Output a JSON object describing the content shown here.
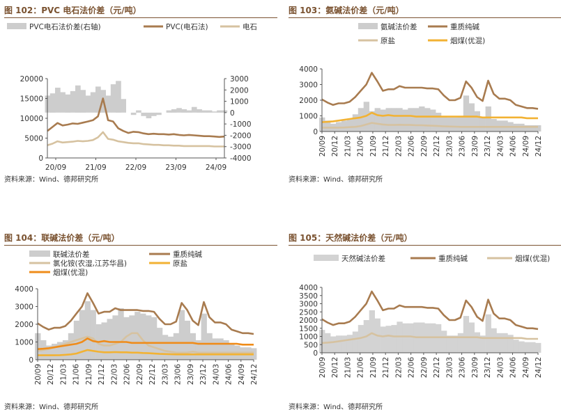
{
  "charts": [
    {
      "id": "c102",
      "title": "图 102：PVC 电石法价差（元/吨）",
      "source": "资料来源：Wind、德邦研究所",
      "chart_data": {
        "type": "area+line",
        "title": "PVC 电石法价差（元/吨）",
        "legend": [
          "PVC电石法价差(右轴)",
          "PVC(电石法)",
          "电石"
        ],
        "x_ticks": [
          "20/09",
          "21/09",
          "22/09",
          "23/09",
          "24/09"
        ],
        "y_left": {
          "ticks": [
            "0",
            "5000",
            "10000",
            "15000",
            "20000"
          ],
          "min": 0,
          "max": 20000
        },
        "y_right": {
          "ticks": [
            "-4000",
            "-3000",
            "-2000",
            "-1000",
            "0",
            "1000",
            "2000",
            "3000"
          ],
          "min": -4000,
          "max": 3000
        },
        "series": [
          {
            "name": "PVC电石法价差(右轴)",
            "axis": "right",
            "kind": "area",
            "color": "#cdcdcd",
            "values": [
              1500,
              1700,
              2200,
              1800,
              1600,
              1900,
              2400,
              2000,
              1500,
              1800,
              2300,
              2000,
              1500,
              2500,
              2800,
              1200,
              0,
              -200,
              200,
              -300,
              -500,
              -300,
              -200,
              0,
              200,
              300,
              400,
              300,
              200,
              500,
              300,
              200,
              200,
              100,
              200,
              200
            ]
          },
          {
            "name": "PVC(电石法)",
            "axis": "left",
            "kind": "line",
            "color": "#a87b4f",
            "values": [
              6800,
              7800,
              8800,
              8200,
              8400,
              8700,
              8600,
              8900,
              9200,
              9500,
              10500,
              15000,
              9500,
              9200,
              7500,
              6800,
              6300,
              6600,
              6500,
              6200,
              6000,
              6100,
              6000,
              6000,
              5900,
              6000,
              5800,
              5700,
              5800,
              5700,
              5600,
              5500,
              5500,
              5400,
              5300,
              5400
            ]
          },
          {
            "name": "电石",
            "axis": "left",
            "kind": "line",
            "color": "#d6c2a0",
            "values": [
              3200,
              3600,
              4200,
              3900,
              4000,
              4100,
              4300,
              4200,
              4300,
              4500,
              5200,
              6500,
              4800,
              4600,
              4200,
              4000,
              3800,
              3700,
              3700,
              3500,
              3400,
              3300,
              3300,
              3200,
              3200,
              3100,
              3100,
              3000,
              3000,
              3000,
              3000,
              3000,
              3000,
              2900,
              2900,
              2900
            ]
          }
        ]
      }
    },
    {
      "id": "c103",
      "title": "图 103：氨碱法价差（元/吨）",
      "source": "资料来源：Wind、德邦研究所",
      "chart_data": {
        "type": "area+line",
        "title": "氨碱法价差（元/吨）",
        "legend": [
          "氨碱法价差",
          "重质纯碱",
          "原盐",
          "烟煤(优混)"
        ],
        "x_ticks": [
          "20/09",
          "20/12",
          "21/03",
          "21/06",
          "21/09",
          "21/12",
          "22/03",
          "22/06",
          "22/09",
          "22/12",
          "23/03",
          "23/06",
          "23/09",
          "23/12",
          "24/03",
          "24/06",
          "24/09",
          "24/12"
        ],
        "y_left": {
          "ticks": [
            "0",
            "1000",
            "2000",
            "3000",
            "4000"
          ],
          "min": 0,
          "max": 4000
        },
        "series": [
          {
            "name": "氨碱法价差",
            "kind": "area",
            "color": "#cdcdcd",
            "values": [
              900,
              700,
              500,
              600,
              700,
              800,
              1100,
              1500,
              1900,
              1300,
              1500,
              1400,
              1500,
              1500,
              1500,
              1400,
              1500,
              1500,
              1600,
              1500,
              1400,
              1200,
              1000,
              900,
              900,
              1000,
              2300,
              1800,
              1300,
              900,
              1600,
              800,
              700,
              700,
              600,
              500,
              500,
              400,
              400,
              400
            ]
          },
          {
            "name": "重质纯碱",
            "kind": "line",
            "color": "#a87b4f",
            "values": [
              2050,
              1850,
              1700,
              1800,
              1800,
              1900,
              2200,
              2600,
              3000,
              3750,
              3200,
              2600,
              2700,
              2700,
              2900,
              2800,
              2800,
              2800,
              2800,
              2750,
              2750,
              2700,
              2300,
              2000,
              2000,
              2150,
              3200,
              2800,
              2200,
              1950,
              3250,
              2400,
              2100,
              2100,
              2000,
              1700,
              1600,
              1500,
              1500,
              1450
            ]
          },
          {
            "name": "原盐",
            "kind": "line",
            "color": "#d6c2a0",
            "values": [
              250,
              250,
              250,
              250,
              260,
              280,
              300,
              350,
              450,
              550,
              500,
              450,
              420,
              420,
              430,
              420,
              420,
              400,
              400,
              380,
              370,
              350,
              330,
              320,
              310,
              300,
              300,
              300,
              300,
              300,
              300,
              300,
              300,
              300,
              300,
              300,
              300,
              300,
              300,
              300
            ]
          },
          {
            "name": "烟煤(优混)",
            "kind": "line",
            "color": "#f2b233",
            "values": [
              600,
              620,
              650,
              700,
              750,
              800,
              850,
              900,
              1000,
              1200,
              1050,
              1000,
              1050,
              1000,
              1000,
              1000,
              1000,
              950,
              950,
              950,
              950,
              950,
              950,
              950,
              950,
              950,
              950,
              950,
              950,
              900,
              900,
              900,
              900,
              900,
              900,
              900,
              900,
              850,
              850,
              850
            ]
          }
        ]
      }
    },
    {
      "id": "c104",
      "title": "图 104：联碱法价差（元/吨）",
      "source": "资料来源：Wind、德邦研究所",
      "chart_data": {
        "type": "area+line",
        "title": "联碱法价差（元/吨）",
        "legend": [
          "联碱法价差",
          "重质纯碱",
          "氯化铵(农湿,江苏华昌)",
          "原盐",
          "烟煤(优混)"
        ],
        "x_ticks": [
          "20/09",
          "20/12",
          "21/03",
          "21/06",
          "21/09",
          "21/12",
          "22/03",
          "22/06",
          "22/09",
          "22/12",
          "23/03",
          "23/06",
          "23/09",
          "23/12",
          "24/03",
          "24/06",
          "24/09",
          "24/12"
        ],
        "y_left": {
          "ticks": [
            "0",
            "1000",
            "2000",
            "3000",
            "4000"
          ],
          "min": 0,
          "max": 4000
        },
        "series": [
          {
            "name": "联碱法价差",
            "kind": "area",
            "color": "#cdcdcd",
            "values": [
              1500,
              1100,
              800,
              900,
              1000,
              1100,
              1500,
              2200,
              2800,
              3300,
              2800,
              2000,
              2100,
              2300,
              2500,
              2900,
              2400,
              2500,
              2700,
              2600,
              2500,
              2400,
              1800,
              1400,
              1300,
              1500,
              2800,
              2200,
              1500,
              1100,
              2600,
              1500,
              1200,
              1200,
              1100,
              900,
              800,
              700,
              700,
              650
            ]
          },
          {
            "name": "重质纯碱",
            "kind": "line",
            "color": "#a87b4f",
            "values": [
              2050,
              1850,
              1700,
              1800,
              1800,
              1900,
              2200,
              2600,
              3000,
              3750,
              3200,
              2600,
              2700,
              2700,
              2900,
              2800,
              2800,
              2800,
              2800,
              2750,
              2750,
              2700,
              2300,
              2000,
              2000,
              2150,
              3200,
              2800,
              2200,
              1950,
              3250,
              2400,
              2100,
              2100,
              2000,
              1700,
              1600,
              1500,
              1500,
              1450
            ]
          },
          {
            "name": "氯化铵(农湿,江苏华昌)",
            "kind": "line",
            "color": "#d6c2a0",
            "values": [
              500,
              550,
              600,
              700,
              800,
              900,
              1000,
              1100,
              1200,
              1300,
              1200,
              900,
              800,
              800,
              900,
              1000,
              1300,
              1500,
              1500,
              1100,
              800,
              700,
              600,
              500,
              450,
              400,
              400,
              400,
              450,
              400,
              400,
              400,
              400,
              400,
              400,
              400,
              400,
              400,
              400,
              400
            ]
          },
          {
            "name": "原盐",
            "kind": "line",
            "color": "#f2b233",
            "values": [
              250,
              250,
              250,
              250,
              260,
              280,
              300,
              350,
              450,
              550,
              500,
              450,
              420,
              420,
              430,
              420,
              420,
              400,
              400,
              380,
              370,
              350,
              330,
              320,
              310,
              300,
              300,
              300,
              300,
              300,
              300,
              300,
              300,
              300,
              300,
              300,
              300,
              300,
              300,
              300
            ]
          },
          {
            "name": "烟煤(优混)",
            "kind": "line",
            "color": "#ef8c1a",
            "values": [
              600,
              620,
              650,
              700,
              750,
              800,
              850,
              900,
              1000,
              1200,
              1050,
              1000,
              1050,
              1000,
              1000,
              1000,
              1000,
              950,
              950,
              950,
              950,
              950,
              950,
              950,
              950,
              950,
              950,
              950,
              950,
              900,
              900,
              900,
              900,
              900,
              900,
              900,
              900,
              850,
              850,
              850
            ]
          }
        ]
      }
    },
    {
      "id": "c105",
      "title": "图 105：天然碱法价差（元/吨）",
      "source": "资料来源：Wind、德邦研究所",
      "chart_data": {
        "type": "area+line",
        "title": "天然碱法价差（元/吨）",
        "legend": [
          "天然碱法价差",
          "重质纯碱",
          "烟煤(优混)"
        ],
        "x_ticks": [
          "20/09",
          "20/12",
          "21/03",
          "21/06",
          "21/09",
          "21/12",
          "22/03",
          "22/06",
          "22/09",
          "22/12",
          "23/03",
          "23/06",
          "23/09",
          "23/12",
          "24/03",
          "24/06",
          "24/09",
          "24/12"
        ],
        "y_left": {
          "ticks": [
            "0",
            "500",
            "1000",
            "1500",
            "2000",
            "2500",
            "3000",
            "3500",
            "4000"
          ],
          "min": 0,
          "max": 4000
        },
        "series": [
          {
            "name": "天然碱法价差",
            "kind": "area",
            "color": "#d3d3d3",
            "values": [
              1400,
              1200,
              1000,
              1050,
              1050,
              1100,
              1300,
              1700,
              2000,
              2600,
              2100,
              1600,
              1650,
              1700,
              1900,
              1800,
              1800,
              1850,
              1850,
              1800,
              1800,
              1750,
              1350,
              1050,
              1050,
              1200,
              2250,
              1850,
              1250,
              1050,
              2350,
              1500,
              1200,
              1200,
              1100,
              800,
              700,
              650,
              650,
              600
            ]
          },
          {
            "name": "重质纯碱",
            "kind": "line",
            "color": "#a87b4f",
            "values": [
              2050,
              1850,
              1700,
              1800,
              1800,
              1900,
              2200,
              2600,
              3000,
              3750,
              3200,
              2600,
              2700,
              2700,
              2900,
              2800,
              2800,
              2800,
              2800,
              2750,
              2750,
              2700,
              2300,
              2000,
              2000,
              2150,
              3200,
              2800,
              2200,
              1950,
              3250,
              2400,
              2100,
              2100,
              2000,
              1700,
              1600,
              1500,
              1500,
              1450
            ]
          },
          {
            "name": "烟煤(优混)",
            "kind": "line",
            "color": "#d6c2a0",
            "values": [
              600,
              620,
              650,
              700,
              750,
              800,
              850,
              900,
              1000,
              1200,
              1050,
              1000,
              1050,
              1000,
              1000,
              1000,
              1000,
              950,
              950,
              950,
              950,
              950,
              950,
              950,
              950,
              950,
              950,
              950,
              950,
              900,
              900,
              900,
              900,
              900,
              900,
              900,
              900,
              850,
              850,
              850
            ]
          }
        ]
      }
    }
  ]
}
